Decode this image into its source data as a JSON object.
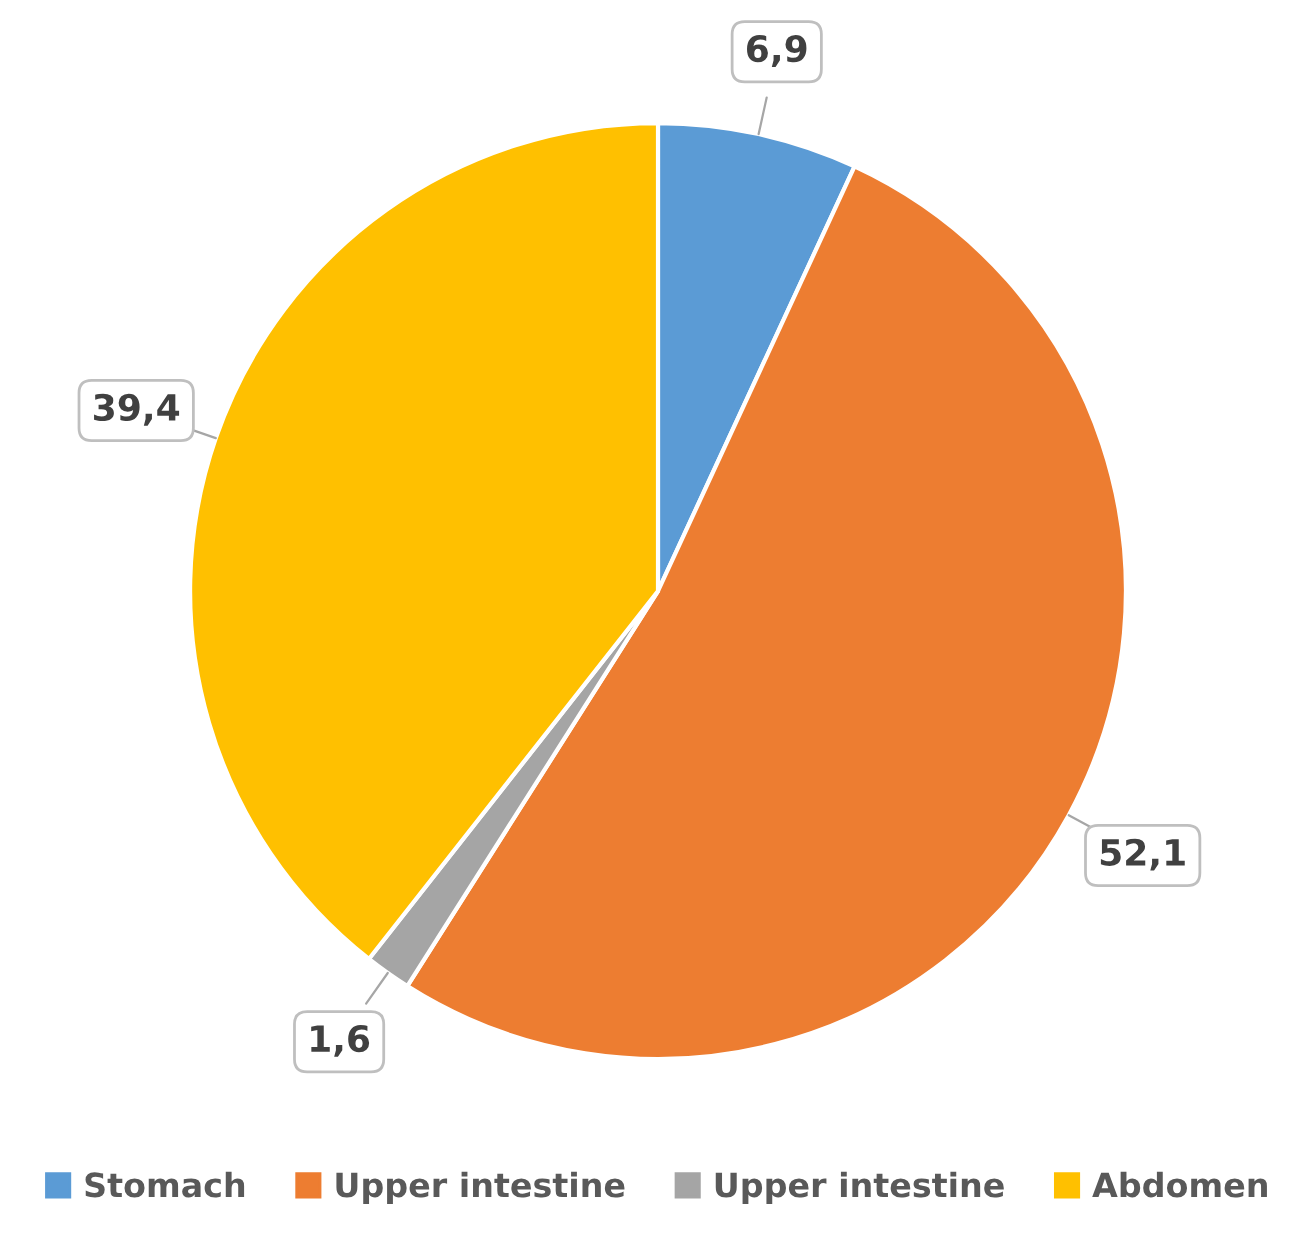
{
  "chart_data": {
    "type": "pie",
    "categories": [
      "Stomach",
      "Upper intestine",
      "Upper intestine",
      "Abdomen"
    ],
    "values": [
      6.9,
      52.1,
      1.6,
      39.4
    ],
    "colors": [
      "#5b9bd5",
      "#ed7d31",
      "#a5a5a5",
      "#ffc000"
    ],
    "value_labels": [
      "6,9",
      "52,1",
      "1,6",
      "39,4"
    ],
    "legend": "bottom"
  }
}
